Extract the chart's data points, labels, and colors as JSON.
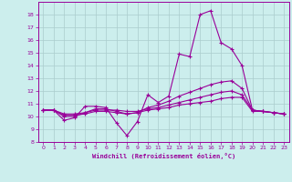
{
  "xlabel": "Windchill (Refroidissement éolien,°C)",
  "bg_color": "#cceeed",
  "grid_color": "#aacccc",
  "line_color": "#990099",
  "spine_color": "#888888",
  "xlim": [
    -0.5,
    23.5
  ],
  "ylim": [
    8,
    19
  ],
  "xticks": [
    0,
    1,
    2,
    3,
    4,
    5,
    6,
    7,
    8,
    9,
    10,
    11,
    12,
    13,
    14,
    15,
    16,
    17,
    18,
    19,
    20,
    21,
    22,
    23
  ],
  "yticks": [
    8,
    9,
    10,
    11,
    12,
    13,
    14,
    15,
    16,
    17,
    18
  ],
  "series1_x": [
    0,
    1,
    2,
    3,
    4,
    5,
    6,
    7,
    8,
    9,
    10,
    11,
    12,
    13,
    14,
    15,
    16,
    17,
    18,
    19,
    20,
    21,
    22,
    23
  ],
  "series1_y": [
    10.5,
    10.5,
    9.7,
    9.9,
    10.8,
    10.8,
    10.7,
    9.5,
    8.5,
    9.6,
    11.7,
    11.1,
    11.6,
    14.9,
    14.7,
    18.0,
    18.3,
    15.8,
    15.3,
    14.0,
    10.5,
    10.4,
    10.3,
    10.2
  ],
  "series2_x": [
    0,
    1,
    2,
    3,
    4,
    5,
    6,
    7,
    8,
    9,
    10,
    11,
    12,
    13,
    14,
    15,
    16,
    17,
    18,
    19,
    20,
    21,
    22,
    23
  ],
  "series2_y": [
    10.5,
    10.5,
    10.0,
    10.0,
    10.3,
    10.6,
    10.6,
    10.4,
    10.2,
    10.3,
    10.7,
    10.9,
    11.2,
    11.6,
    11.9,
    12.2,
    12.5,
    12.7,
    12.8,
    12.2,
    10.5,
    10.4,
    10.3,
    10.2
  ],
  "series3_x": [
    0,
    1,
    2,
    3,
    4,
    5,
    6,
    7,
    8,
    9,
    10,
    11,
    12,
    13,
    14,
    15,
    16,
    17,
    18,
    19,
    20,
    21,
    22,
    23
  ],
  "series3_y": [
    10.5,
    10.5,
    10.2,
    10.2,
    10.3,
    10.5,
    10.5,
    10.5,
    10.4,
    10.4,
    10.6,
    10.7,
    10.9,
    11.1,
    11.3,
    11.5,
    11.7,
    11.9,
    12.0,
    11.7,
    10.5,
    10.4,
    10.3,
    10.2
  ],
  "series4_x": [
    0,
    1,
    2,
    3,
    4,
    5,
    6,
    7,
    8,
    9,
    10,
    11,
    12,
    13,
    14,
    15,
    16,
    17,
    18,
    19,
    20,
    21,
    22,
    23
  ],
  "series4_y": [
    10.5,
    10.5,
    10.1,
    10.1,
    10.2,
    10.4,
    10.4,
    10.3,
    10.2,
    10.3,
    10.5,
    10.6,
    10.7,
    10.9,
    11.0,
    11.1,
    11.2,
    11.4,
    11.5,
    11.5,
    10.4,
    10.4,
    10.3,
    10.2
  ]
}
